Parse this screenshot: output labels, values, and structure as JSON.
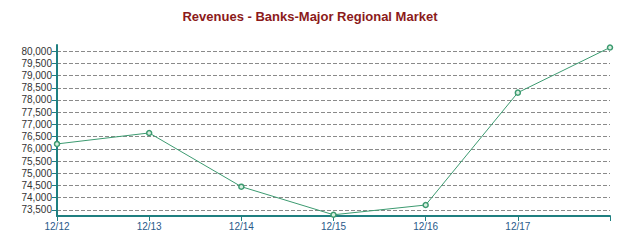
{
  "chart_data": {
    "type": "line",
    "title": "Revenues - Banks-Major Regional Market",
    "categories": [
      "12/12",
      "12/13",
      "12/14",
      "12/15",
      "12/16",
      "12/17",
      null
    ],
    "values": [
      76200,
      76650,
      74450,
      73300,
      73700,
      78300,
      80150
    ],
    "color": "#3c9a70",
    "ylim": [
      73250,
      80250
    ],
    "yticks": [
      {
        "value": 73500,
        "label": "73,500"
      },
      {
        "value": 74000,
        "label": "74,000"
      },
      {
        "value": 74500,
        "label": "74,500"
      },
      {
        "value": 75000,
        "label": "75,000"
      },
      {
        "value": 75500,
        "label": "75,500"
      },
      {
        "value": 76000,
        "label": "76,000"
      },
      {
        "value": 76500,
        "label": "76,500"
      },
      {
        "value": 77000,
        "label": "77,000"
      },
      {
        "value": 77500,
        "label": "77,500"
      },
      {
        "value": 78000,
        "label": "78,000"
      },
      {
        "value": 78500,
        "label": "78,500"
      },
      {
        "value": 79000,
        "label": "79,000"
      },
      {
        "value": 79500,
        "label": "79,500"
      },
      {
        "value": 80000,
        "label": "80,000"
      }
    ],
    "grid": true,
    "marker": "circle",
    "line_style": "solid"
  }
}
